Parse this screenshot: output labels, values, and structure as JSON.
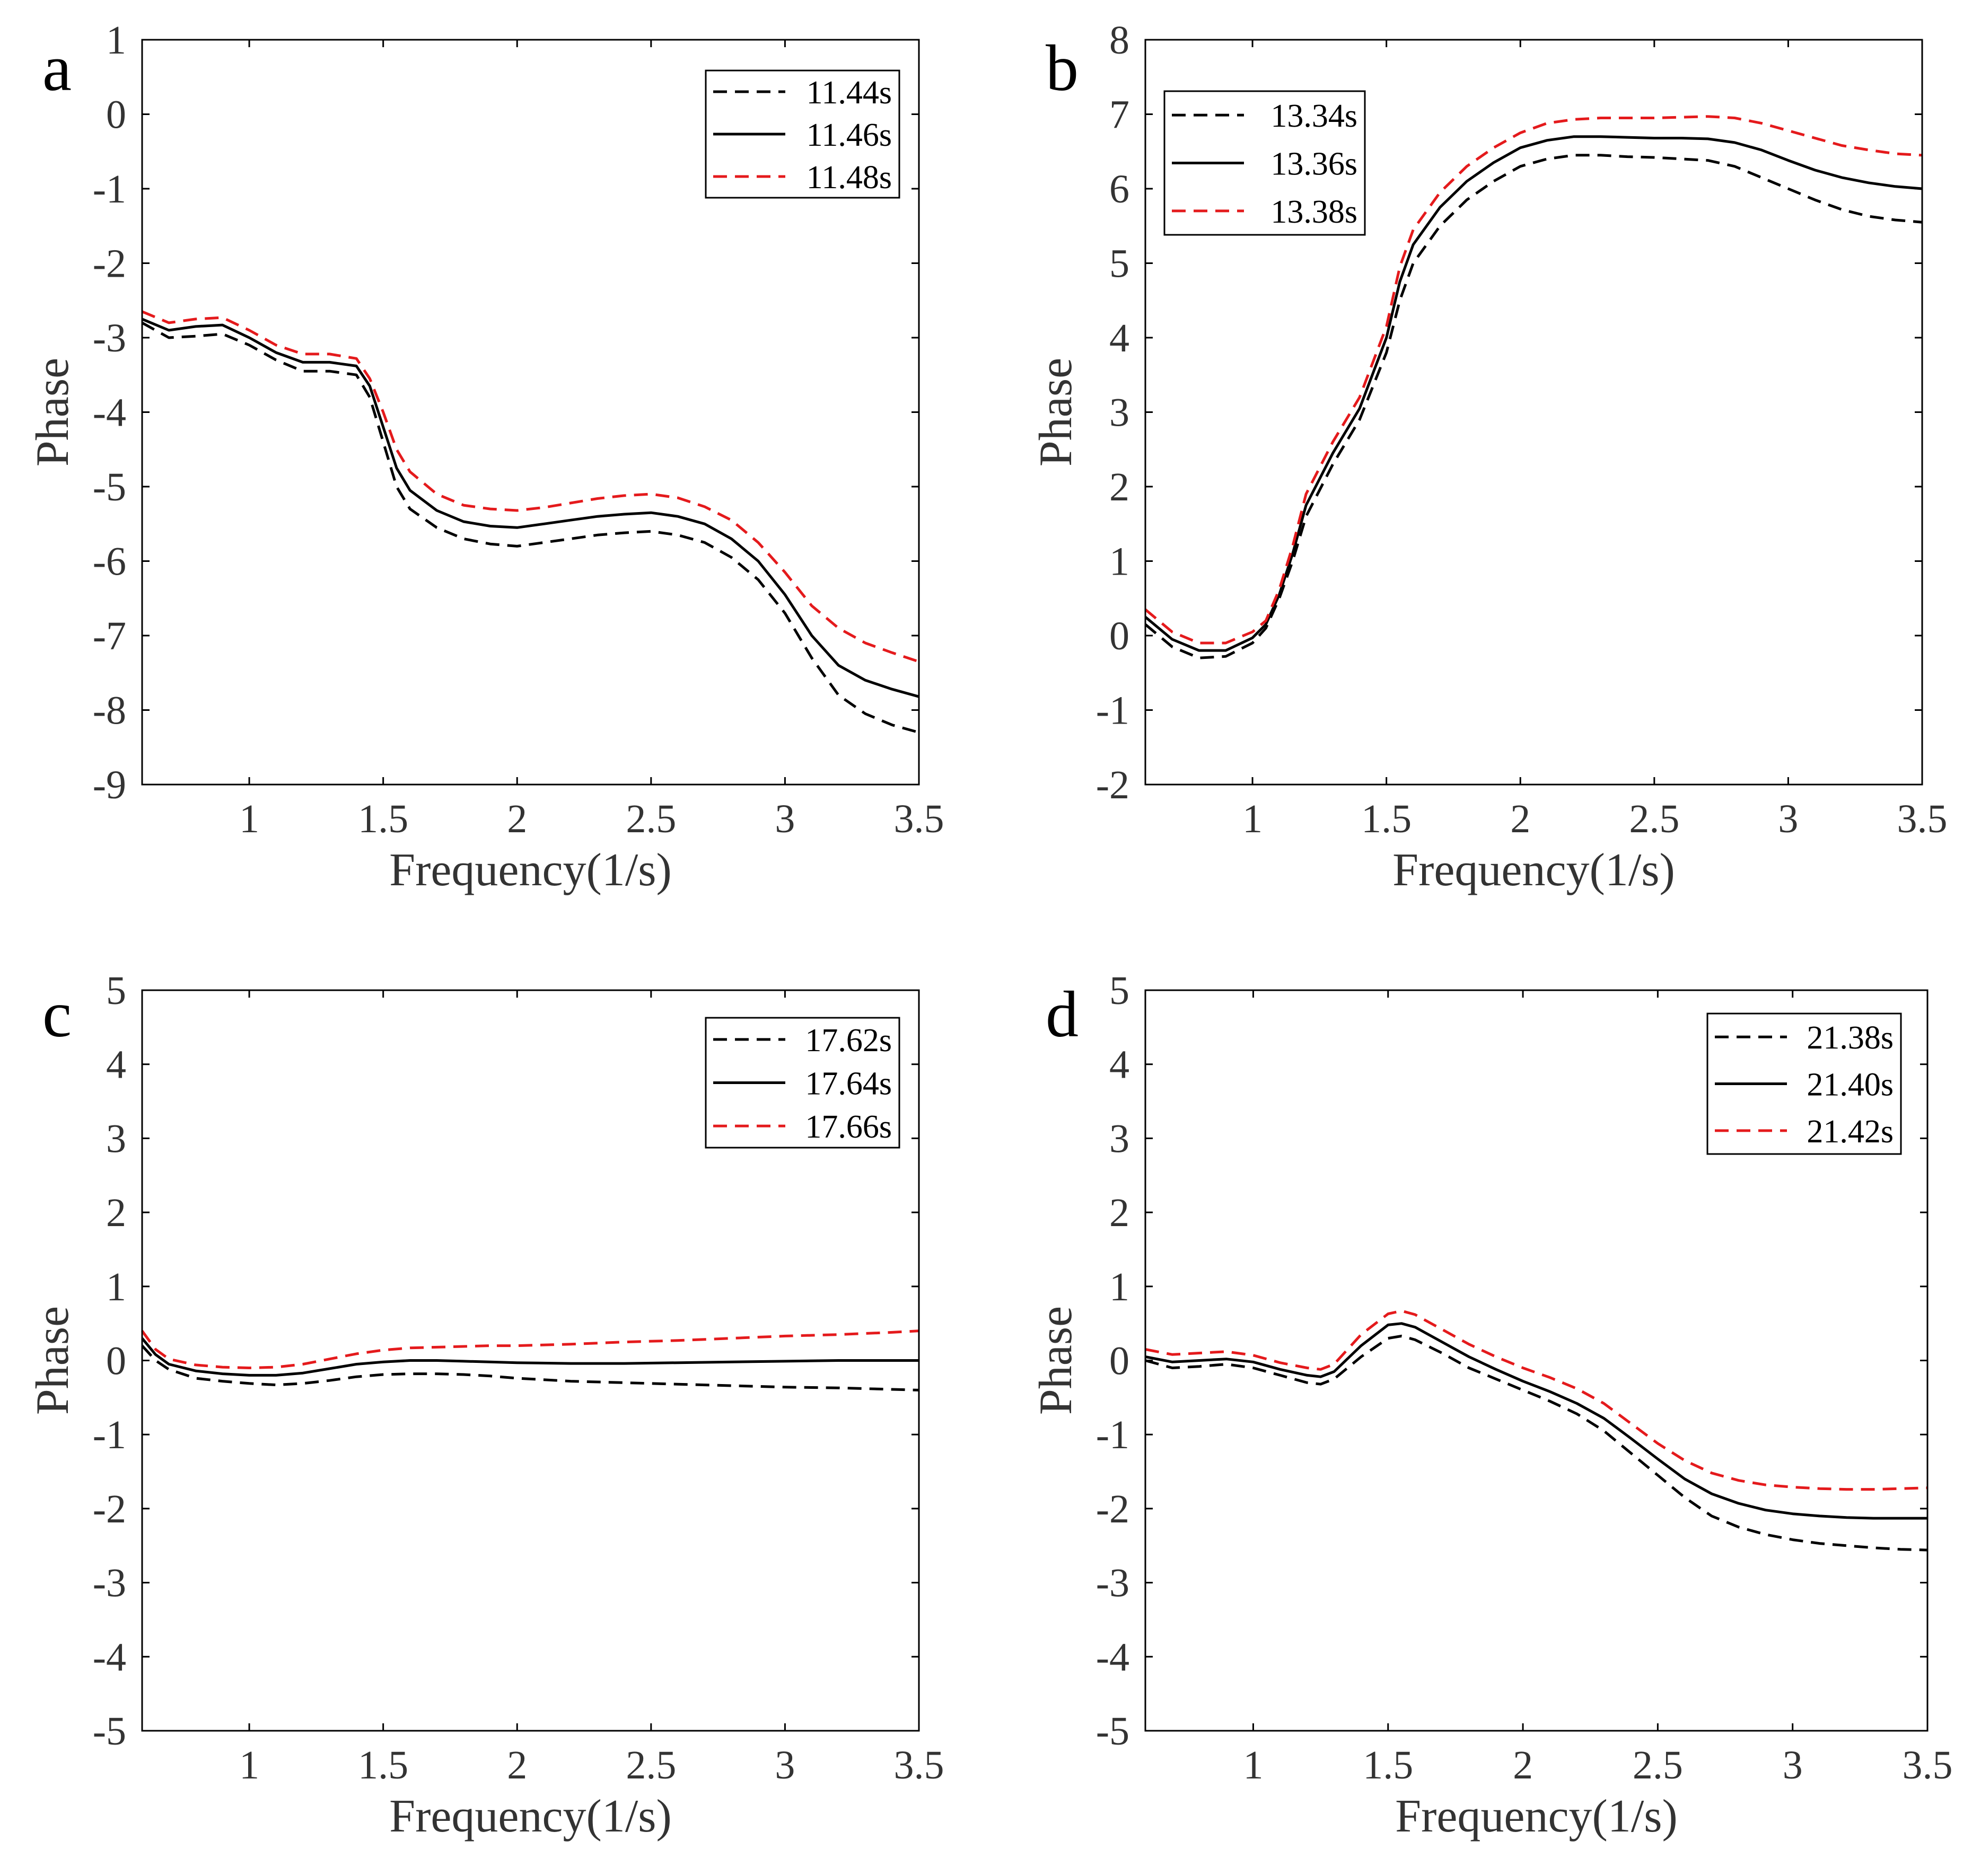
{
  "chart_data": [
    {
      "type": "line",
      "panel_label": "a",
      "xlabel": "Frequency(1/s)",
      "ylabel": "Phase",
      "xlim": [
        0.6,
        3.5
      ],
      "ylim": [
        -9,
        1
      ],
      "xticks": [
        1,
        1.5,
        2,
        2.5,
        3,
        3.5
      ],
      "xtick_labels": [
        "1",
        "1.5",
        "2",
        "2.5",
        "3",
        "3.5"
      ],
      "yticks": [
        -9,
        -8,
        -7,
        -6,
        -5,
        -4,
        -3,
        -2,
        -1,
        0,
        1
      ],
      "ytick_labels": [
        "-9",
        "-8",
        "-7",
        "-6",
        "-5",
        "-4",
        "-3",
        "-2",
        "-1",
        "0",
        "1"
      ],
      "legend_position": "top-right",
      "series": [
        {
          "name": "11.44s",
          "color": "#000000",
          "style": "dashed",
          "x": [
            0.6,
            0.7,
            0.8,
            0.9,
            1.0,
            1.1,
            1.2,
            1.3,
            1.4,
            1.45,
            1.5,
            1.55,
            1.6,
            1.7,
            1.8,
            1.9,
            2.0,
            2.1,
            2.2,
            2.3,
            2.4,
            2.5,
            2.6,
            2.7,
            2.8,
            2.9,
            3.0,
            3.1,
            3.2,
            3.3,
            3.4,
            3.5
          ],
          "y": [
            -2.8,
            -3.0,
            -2.98,
            -2.95,
            -3.1,
            -3.3,
            -3.45,
            -3.45,
            -3.5,
            -3.8,
            -4.4,
            -5.0,
            -5.3,
            -5.55,
            -5.7,
            -5.77,
            -5.8,
            -5.75,
            -5.7,
            -5.65,
            -5.62,
            -5.6,
            -5.65,
            -5.75,
            -5.95,
            -6.25,
            -6.7,
            -7.3,
            -7.8,
            -8.05,
            -8.2,
            -8.3
          ]
        },
        {
          "name": "11.46s",
          "color": "#000000",
          "style": "solid",
          "x": [
            0.6,
            0.7,
            0.8,
            0.9,
            1.0,
            1.1,
            1.2,
            1.3,
            1.4,
            1.45,
            1.5,
            1.55,
            1.6,
            1.7,
            1.8,
            1.9,
            2.0,
            2.1,
            2.2,
            2.3,
            2.4,
            2.5,
            2.6,
            2.7,
            2.8,
            2.9,
            3.0,
            3.1,
            3.2,
            3.3,
            3.4,
            3.5
          ],
          "y": [
            -2.75,
            -2.9,
            -2.85,
            -2.83,
            -3.0,
            -3.2,
            -3.33,
            -3.33,
            -3.38,
            -3.65,
            -4.2,
            -4.75,
            -5.05,
            -5.32,
            -5.47,
            -5.53,
            -5.55,
            -5.5,
            -5.45,
            -5.4,
            -5.37,
            -5.35,
            -5.4,
            -5.5,
            -5.7,
            -6.0,
            -6.45,
            -7.0,
            -7.4,
            -7.6,
            -7.72,
            -7.82
          ]
        },
        {
          "name": "11.48s",
          "color": "#e41a1c",
          "style": "dashed",
          "x": [
            0.6,
            0.7,
            0.8,
            0.9,
            1.0,
            1.1,
            1.2,
            1.3,
            1.4,
            1.45,
            1.5,
            1.55,
            1.6,
            1.7,
            1.8,
            1.9,
            2.0,
            2.1,
            2.2,
            2.3,
            2.4,
            2.5,
            2.6,
            2.7,
            2.8,
            2.9,
            3.0,
            3.1,
            3.2,
            3.3,
            3.4,
            3.5
          ],
          "y": [
            -2.65,
            -2.8,
            -2.75,
            -2.73,
            -2.9,
            -3.1,
            -3.22,
            -3.22,
            -3.28,
            -3.55,
            -4.0,
            -4.5,
            -4.8,
            -5.1,
            -5.25,
            -5.3,
            -5.32,
            -5.28,
            -5.22,
            -5.16,
            -5.12,
            -5.1,
            -5.15,
            -5.27,
            -5.45,
            -5.75,
            -6.15,
            -6.6,
            -6.9,
            -7.1,
            -7.23,
            -7.35
          ]
        }
      ]
    },
    {
      "type": "line",
      "panel_label": "b",
      "xlabel": "Frequency(1/s)",
      "ylabel": "Phase",
      "xlim": [
        0.6,
        3.5
      ],
      "ylim": [
        -2,
        8
      ],
      "xticks": [
        1,
        1.5,
        2,
        2.5,
        3,
        3.5
      ],
      "xtick_labels": [
        "1",
        "1.5",
        "2",
        "2.5",
        "3",
        "3.5"
      ],
      "yticks": [
        -2,
        -1,
        0,
        1,
        2,
        3,
        4,
        5,
        6,
        7,
        8
      ],
      "ytick_labels": [
        "-2",
        "-1",
        "0",
        "1",
        "2",
        "3",
        "4",
        "5",
        "6",
        "7",
        "8"
      ],
      "legend_position": "top-left",
      "series": [
        {
          "name": "13.34s",
          "color": "#000000",
          "style": "dashed",
          "x": [
            0.6,
            0.7,
            0.8,
            0.9,
            1.0,
            1.05,
            1.1,
            1.15,
            1.2,
            1.3,
            1.4,
            1.5,
            1.55,
            1.6,
            1.7,
            1.8,
            1.9,
            2.0,
            2.1,
            2.2,
            2.3,
            2.4,
            2.5,
            2.6,
            2.7,
            2.8,
            2.9,
            3.0,
            3.1,
            3.2,
            3.3,
            3.4,
            3.5
          ],
          "y": [
            0.15,
            -0.15,
            -0.3,
            -0.28,
            -0.1,
            0.1,
            0.5,
            1.0,
            1.6,
            2.3,
            2.9,
            3.8,
            4.5,
            5.0,
            5.5,
            5.85,
            6.1,
            6.3,
            6.4,
            6.45,
            6.45,
            6.43,
            6.42,
            6.4,
            6.38,
            6.3,
            6.15,
            6.0,
            5.85,
            5.72,
            5.63,
            5.58,
            5.55
          ]
        },
        {
          "name": "13.36s",
          "color": "#000000",
          "style": "solid",
          "x": [
            0.6,
            0.7,
            0.8,
            0.9,
            1.0,
            1.05,
            1.1,
            1.15,
            1.2,
            1.3,
            1.4,
            1.5,
            1.55,
            1.6,
            1.7,
            1.8,
            1.9,
            2.0,
            2.1,
            2.2,
            2.3,
            2.4,
            2.5,
            2.6,
            2.7,
            2.8,
            2.9,
            3.0,
            3.1,
            3.2,
            3.3,
            3.4,
            3.5
          ],
          "y": [
            0.25,
            -0.05,
            -0.2,
            -0.2,
            -0.03,
            0.15,
            0.55,
            1.1,
            1.75,
            2.45,
            3.05,
            4.0,
            4.75,
            5.25,
            5.75,
            6.1,
            6.35,
            6.55,
            6.65,
            6.7,
            6.7,
            6.69,
            6.68,
            6.68,
            6.67,
            6.62,
            6.52,
            6.38,
            6.25,
            6.15,
            6.08,
            6.03,
            6.0
          ]
        },
        {
          "name": "13.38s",
          "color": "#e41a1c",
          "style": "dashed",
          "x": [
            0.6,
            0.7,
            0.8,
            0.9,
            1.0,
            1.05,
            1.1,
            1.15,
            1.2,
            1.3,
            1.4,
            1.5,
            1.55,
            1.6,
            1.7,
            1.8,
            1.9,
            2.0,
            2.1,
            2.2,
            2.3,
            2.4,
            2.5,
            2.6,
            2.7,
            2.8,
            2.9,
            3.0,
            3.1,
            3.2,
            3.3,
            3.4,
            3.5
          ],
          "y": [
            0.35,
            0.05,
            -0.1,
            -0.1,
            0.05,
            0.2,
            0.62,
            1.2,
            1.9,
            2.6,
            3.2,
            4.15,
            4.95,
            5.45,
            5.95,
            6.3,
            6.55,
            6.75,
            6.88,
            6.93,
            6.95,
            6.95,
            6.95,
            6.96,
            6.97,
            6.95,
            6.88,
            6.78,
            6.68,
            6.58,
            6.52,
            6.47,
            6.45
          ]
        }
      ]
    },
    {
      "type": "line",
      "panel_label": "c",
      "xlabel": "Frequency(1/s)",
      "ylabel": "Phase",
      "xlim": [
        0.6,
        3.5
      ],
      "ylim": [
        -5,
        5
      ],
      "xticks": [
        1,
        1.5,
        2,
        2.5,
        3,
        3.5
      ],
      "xtick_labels": [
        "1",
        "1.5",
        "2",
        "2.5",
        "3",
        "3.5"
      ],
      "yticks": [
        -5,
        -4,
        -3,
        -2,
        -1,
        0,
        1,
        2,
        3,
        4,
        5
      ],
      "ytick_labels": [
        "-5",
        "-4",
        "-3",
        "-2",
        "-1",
        "0",
        "1",
        "2",
        "3",
        "4",
        "5"
      ],
      "legend_position": "top-right",
      "series": [
        {
          "name": "17.62s",
          "color": "#000000",
          "style": "dashed",
          "x": [
            0.6,
            0.65,
            0.7,
            0.8,
            0.9,
            1.0,
            1.1,
            1.2,
            1.3,
            1.4,
            1.5,
            1.6,
            1.7,
            1.8,
            1.9,
            2.0,
            2.2,
            2.4,
            2.6,
            2.8,
            3.0,
            3.2,
            3.4,
            3.5
          ],
          "y": [
            0.2,
            0.0,
            -0.12,
            -0.24,
            -0.28,
            -0.31,
            -0.33,
            -0.31,
            -0.27,
            -0.22,
            -0.19,
            -0.18,
            -0.18,
            -0.19,
            -0.21,
            -0.24,
            -0.28,
            -0.3,
            -0.32,
            -0.34,
            -0.36,
            -0.37,
            -0.39,
            -0.4
          ]
        },
        {
          "name": "17.64s",
          "color": "#000000",
          "style": "solid",
          "x": [
            0.6,
            0.65,
            0.7,
            0.8,
            0.9,
            1.0,
            1.1,
            1.2,
            1.3,
            1.4,
            1.5,
            1.6,
            1.7,
            1.8,
            1.9,
            2.0,
            2.2,
            2.4,
            2.6,
            2.8,
            3.0,
            3.2,
            3.4,
            3.5
          ],
          "y": [
            0.3,
            0.08,
            -0.05,
            -0.14,
            -0.18,
            -0.2,
            -0.2,
            -0.17,
            -0.11,
            -0.05,
            -0.02,
            0.0,
            0.0,
            -0.01,
            -0.02,
            -0.03,
            -0.04,
            -0.04,
            -0.03,
            -0.02,
            -0.01,
            0.0,
            0.0,
            0.0
          ]
        },
        {
          "name": "17.66s",
          "color": "#e41a1c",
          "style": "dashed",
          "x": [
            0.6,
            0.65,
            0.7,
            0.8,
            0.9,
            1.0,
            1.1,
            1.2,
            1.3,
            1.4,
            1.5,
            1.6,
            1.7,
            1.8,
            1.9,
            2.0,
            2.2,
            2.4,
            2.6,
            2.8,
            3.0,
            3.2,
            3.4,
            3.5
          ],
          "y": [
            0.4,
            0.15,
            0.02,
            -0.06,
            -0.09,
            -0.1,
            -0.09,
            -0.05,
            0.02,
            0.09,
            0.14,
            0.17,
            0.18,
            0.19,
            0.2,
            0.2,
            0.22,
            0.25,
            0.27,
            0.3,
            0.33,
            0.35,
            0.38,
            0.4
          ]
        }
      ]
    },
    {
      "type": "line",
      "panel_label": "d",
      "xlabel": "Frequency(1/s)",
      "ylabel": "Phase",
      "xlim": [
        0.6,
        3.5
      ],
      "ylim": [
        -5,
        5
      ],
      "xticks": [
        1,
        1.5,
        2,
        2.5,
        3,
        3.5
      ],
      "xtick_labels": [
        "1",
        "1.5",
        "2",
        "2.5",
        "3",
        "3.5"
      ],
      "yticks": [
        -5,
        -4,
        -3,
        -2,
        -1,
        0,
        1,
        2,
        3,
        4,
        5
      ],
      "ytick_labels": [
        "-5",
        "-4",
        "-3",
        "-2",
        "-1",
        "0",
        "1",
        "2",
        "3",
        "4",
        "5"
      ],
      "legend_position": "top-right",
      "series": [
        {
          "name": "21.38s",
          "color": "#000000",
          "style": "dashed",
          "x": [
            0.6,
            0.7,
            0.8,
            0.9,
            1.0,
            1.1,
            1.2,
            1.25,
            1.3,
            1.4,
            1.5,
            1.55,
            1.6,
            1.7,
            1.8,
            1.9,
            2.0,
            2.1,
            2.2,
            2.3,
            2.4,
            2.5,
            2.6,
            2.7,
            2.8,
            2.9,
            3.0,
            3.1,
            3.2,
            3.3,
            3.4,
            3.5
          ],
          "y": [
            0.0,
            -0.1,
            -0.08,
            -0.05,
            -0.1,
            -0.2,
            -0.3,
            -0.32,
            -0.25,
            0.05,
            0.3,
            0.33,
            0.28,
            0.1,
            -0.1,
            -0.25,
            -0.4,
            -0.55,
            -0.72,
            -0.95,
            -1.25,
            -1.55,
            -1.85,
            -2.1,
            -2.25,
            -2.35,
            -2.42,
            -2.47,
            -2.5,
            -2.53,
            -2.55,
            -2.56
          ]
        },
        {
          "name": "21.40s",
          "color": "#000000",
          "style": "solid",
          "x": [
            0.6,
            0.7,
            0.8,
            0.9,
            1.0,
            1.1,
            1.2,
            1.25,
            1.3,
            1.4,
            1.5,
            1.55,
            1.6,
            1.7,
            1.8,
            1.9,
            2.0,
            2.1,
            2.2,
            2.3,
            2.4,
            2.5,
            2.6,
            2.7,
            2.8,
            2.9,
            3.0,
            3.1,
            3.2,
            3.3,
            3.4,
            3.5
          ],
          "y": [
            0.05,
            -0.02,
            0.0,
            0.02,
            -0.02,
            -0.12,
            -0.2,
            -0.22,
            -0.15,
            0.2,
            0.48,
            0.5,
            0.45,
            0.25,
            0.05,
            -0.12,
            -0.28,
            -0.42,
            -0.58,
            -0.78,
            -1.05,
            -1.33,
            -1.6,
            -1.8,
            -1.93,
            -2.02,
            -2.07,
            -2.1,
            -2.12,
            -2.13,
            -2.13,
            -2.13
          ]
        },
        {
          "name": "21.42s",
          "color": "#e41a1c",
          "style": "dashed",
          "x": [
            0.6,
            0.7,
            0.8,
            0.9,
            1.0,
            1.1,
            1.2,
            1.25,
            1.3,
            1.4,
            1.5,
            1.55,
            1.6,
            1.7,
            1.8,
            1.9,
            2.0,
            2.1,
            2.2,
            2.3,
            2.4,
            2.5,
            2.6,
            2.7,
            2.8,
            2.9,
            3.0,
            3.1,
            3.2,
            3.3,
            3.4,
            3.5
          ],
          "y": [
            0.15,
            0.08,
            0.1,
            0.12,
            0.07,
            -0.03,
            -0.1,
            -0.12,
            -0.05,
            0.35,
            0.63,
            0.67,
            0.62,
            0.42,
            0.22,
            0.05,
            -0.1,
            -0.23,
            -0.38,
            -0.58,
            -0.85,
            -1.12,
            -1.35,
            -1.52,
            -1.62,
            -1.68,
            -1.71,
            -1.73,
            -1.74,
            -1.74,
            -1.73,
            -1.72
          ]
        }
      ]
    }
  ]
}
